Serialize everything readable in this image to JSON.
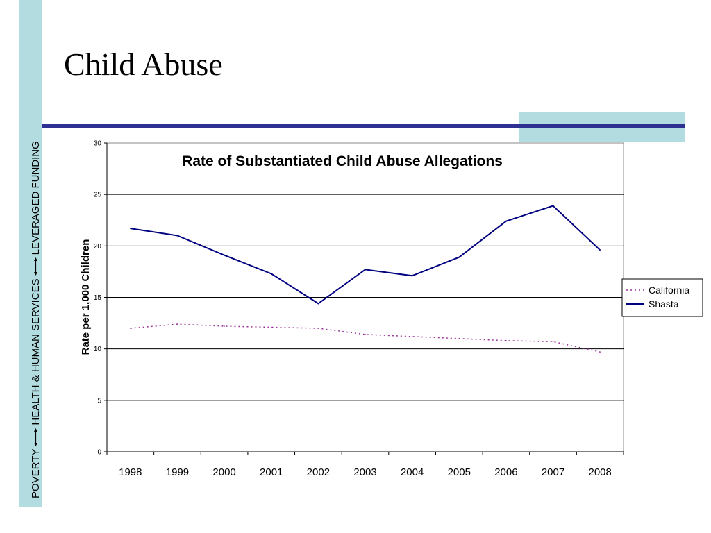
{
  "slide": {
    "title": "Child Abuse",
    "sidebar": {
      "item1": "POVERTY",
      "item2": "HEALTH & HUMAN SERVICES",
      "item3": "LEVERAGED FUNDING"
    },
    "colors": {
      "band": "#b3dce0",
      "rule": "#2e3192"
    }
  },
  "chart_data": {
    "type": "line",
    "title": "Rate of Substantiated Child Abuse Allegations",
    "xlabel": "",
    "ylabel": "Rate per 1,000 Children",
    "categories": [
      "1998",
      "1999",
      "2000",
      "2001",
      "2002",
      "2003",
      "2004",
      "2005",
      "2006",
      "2007",
      "2008"
    ],
    "ylim": [
      0,
      30
    ],
    "yticks": [
      "0",
      "5",
      "10",
      "15",
      "20",
      "25",
      "30"
    ],
    "grid": true,
    "legend_position": "right",
    "series": [
      {
        "name": "California",
        "values": [
          12.0,
          12.4,
          12.2,
          12.1,
          12.0,
          11.4,
          11.2,
          11.0,
          10.8,
          10.7,
          9.7
        ],
        "color": "#993399",
        "style": "dotted"
      },
      {
        "name": "Shasta",
        "values": [
          21.7,
          21.0,
          19.1,
          17.3,
          14.4,
          17.7,
          17.1,
          18.9,
          22.4,
          23.9,
          19.6
        ],
        "color": "#000080",
        "style": "solid"
      }
    ]
  }
}
